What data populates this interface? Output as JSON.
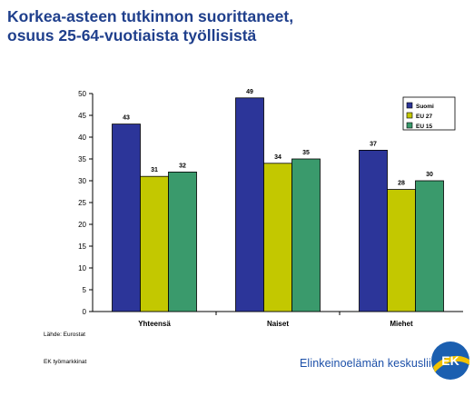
{
  "title_lines": [
    "Korkea-asteen tutkinnon suorittaneet,",
    "osuus 25-64-vuotiaista työllisistä"
  ],
  "footer": {
    "source": "Lähde: Eurostat",
    "note": "EK työmarkkinat",
    "brand": "Elinkeinoelämän keskusliitto",
    "logo_text": "EK"
  },
  "colors": {
    "title": "#1f3f8c",
    "suomi": "#2c3599",
    "eu27": "#c3c800",
    "eu15": "#3a9a6c",
    "brand": "#1b4fa8"
  },
  "chart_data": {
    "type": "bar",
    "categories": [
      "Yhteensä",
      "Naiset",
      "Miehet"
    ],
    "series": [
      {
        "name": "Suomi",
        "values": [
          43,
          49,
          37
        ],
        "color": "#2c3599"
      },
      {
        "name": "EU 27",
        "values": [
          31,
          34,
          28
        ],
        "color": "#c3c800"
      },
      {
        "name": "EU 15",
        "values": [
          32,
          35,
          30
        ],
        "color": "#3a9a6c"
      }
    ],
    "ylim": [
      0,
      50
    ],
    "yticks": [
      0,
      5,
      10,
      15,
      20,
      25,
      30,
      35,
      40,
      45,
      50
    ],
    "xlabel": "",
    "ylabel": "",
    "grid": false,
    "legend": "top-right",
    "data_labels": true
  }
}
